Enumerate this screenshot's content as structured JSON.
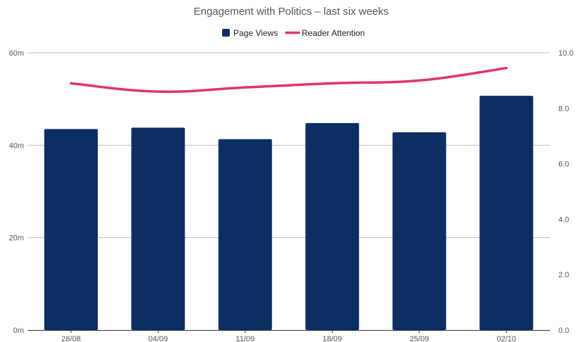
{
  "chart_data": {
    "type": "bar",
    "title": "Engagement with Politics – last six weeks",
    "categories": [
      "28/08",
      "04/09",
      "11/09",
      "18/09",
      "25/09",
      "02/10"
    ],
    "series": [
      {
        "name": "Page Views",
        "type": "bar",
        "axis": "left",
        "color": "#0b2f63",
        "values": [
          43.5,
          43.8,
          41.3,
          44.8,
          42.8,
          50.7
        ]
      },
      {
        "name": "Reader Attention",
        "type": "line",
        "axis": "right",
        "color": "#e0346c",
        "values": [
          8.9,
          8.6,
          8.75,
          8.9,
          9.0,
          9.45
        ]
      }
    ],
    "y_left": {
      "ylim": [
        0,
        60
      ],
      "ticks": [
        0,
        20,
        40,
        60
      ],
      "tick_labels": [
        "0m",
        "20m",
        "40m",
        "60m"
      ]
    },
    "y_right": {
      "ylim": [
        0,
        10
      ],
      "ticks": [
        0,
        2,
        4,
        6,
        8,
        10
      ],
      "tick_labels": [
        "0.0",
        "2.0",
        "4.0",
        "6.0",
        "8.0",
        "10.0"
      ]
    },
    "grid": true,
    "legend": "top-center"
  }
}
